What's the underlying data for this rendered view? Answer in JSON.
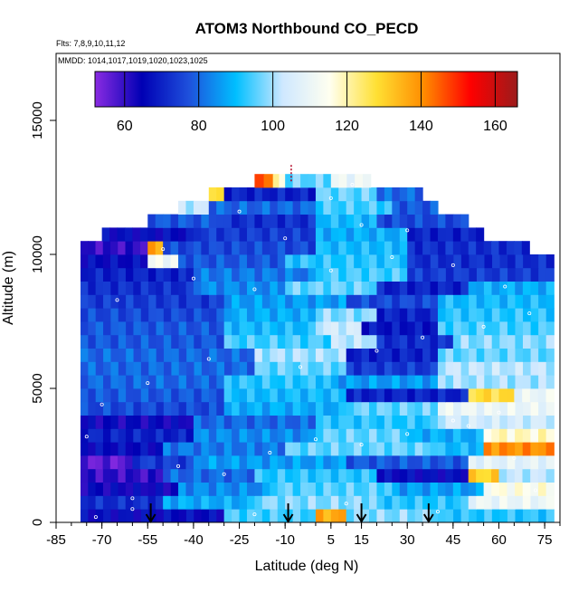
{
  "chart_data": {
    "type": "heatmap",
    "title": "ATOM3 Northbound CO_PECD",
    "subtitle_line1": "Flts: 7,8,9,10,11,12",
    "subtitle_line2": "MMDD: 1014,1017,1019,1020,1023,1025",
    "xlabel": "Latitude (deg N)",
    "ylabel": "Altitude (m)",
    "xlim": [
      -85,
      80
    ],
    "ylim": [
      0,
      17500
    ],
    "x_ticks": [
      -85,
      -70,
      -55,
      -40,
      -25,
      -10,
      5,
      15,
      30,
      45,
      60,
      75
    ],
    "y_ticks": [
      0,
      5000,
      10000,
      15000
    ],
    "colorbar": {
      "range": [
        52,
        166
      ],
      "ticks": [
        60,
        80,
        100,
        120,
        140,
        160
      ],
      "palette": [
        "#8a2be2",
        "#0000b4",
        "#1e50dc",
        "#00bfff",
        "#cfe8ff",
        "#fffff0",
        "#ffe033",
        "#ff8c00",
        "#ff0000",
        "#9b1b1b"
      ]
    },
    "arrows_lat": [
      -54,
      -9,
      15,
      37
    ],
    "tick_mark_top_lat": [
      -8
    ],
    "tick_mark_top_alt": [
      13000
    ],
    "bins": {
      "alt_step": 500,
      "rows": [
        {
          "alt": 0,
          "segments": [
            {
              "lat0": -77,
              "lat1": -30,
              "v": 66
            },
            {
              "lat0": -30,
              "lat1": 0,
              "v": 94
            },
            {
              "lat0": 0,
              "lat1": 10,
              "v": 136
            },
            {
              "lat0": 10,
              "lat1": 40,
              "v": 98
            },
            {
              "lat0": 40,
              "lat1": 78,
              "v": 92
            }
          ]
        },
        {
          "alt": 500,
          "segments": [
            {
              "lat0": -77,
              "lat1": -50,
              "v": 72
            },
            {
              "lat0": -50,
              "lat1": -20,
              "v": 88
            },
            {
              "lat0": -20,
              "lat1": 20,
              "v": 98
            },
            {
              "lat0": 20,
              "lat1": 50,
              "v": 92
            },
            {
              "lat0": 50,
              "lat1": 78,
              "v": 110
            }
          ]
        },
        {
          "alt": 1000,
          "segments": [
            {
              "lat0": -77,
              "lat1": -45,
              "v": 64
            },
            {
              "lat0": -45,
              "lat1": -15,
              "v": 84
            },
            {
              "lat0": -15,
              "lat1": 25,
              "v": 95
            },
            {
              "lat0": 25,
              "lat1": 55,
              "v": 86
            },
            {
              "lat0": 55,
              "lat1": 78,
              "v": 115
            }
          ]
        },
        {
          "alt": 1500,
          "segments": [
            {
              "lat0": -77,
              "lat1": -50,
              "v": 60
            },
            {
              "lat0": -50,
              "lat1": -20,
              "v": 80
            },
            {
              "lat0": -20,
              "lat1": 20,
              "v": 92
            },
            {
              "lat0": 20,
              "lat1": 50,
              "v": 66
            },
            {
              "lat0": 50,
              "lat1": 60,
              "v": 130
            },
            {
              "lat0": 60,
              "lat1": 78,
              "v": 102
            }
          ]
        },
        {
          "alt": 2000,
          "segments": [
            {
              "lat0": -77,
              "lat1": -60,
              "v": 56
            },
            {
              "lat0": -60,
              "lat1": -40,
              "v": 74
            },
            {
              "lat0": -40,
              "lat1": 10,
              "v": 86
            },
            {
              "lat0": 10,
              "lat1": 50,
              "v": 78
            },
            {
              "lat0": 50,
              "lat1": 78,
              "v": 108
            }
          ]
        },
        {
          "alt": 2500,
          "segments": [
            {
              "lat0": -77,
              "lat1": -50,
              "v": 66
            },
            {
              "lat0": -50,
              "lat1": -10,
              "v": 82
            },
            {
              "lat0": -10,
              "lat1": 40,
              "v": 96
            },
            {
              "lat0": 40,
              "lat1": 55,
              "v": 90
            },
            {
              "lat0": 55,
              "lat1": 78,
              "v": 140
            }
          ]
        },
        {
          "alt": 3000,
          "segments": [
            {
              "lat0": -77,
              "lat1": -40,
              "v": 70
            },
            {
              "lat0": -40,
              "lat1": 0,
              "v": 84
            },
            {
              "lat0": 0,
              "lat1": 30,
              "v": 96
            },
            {
              "lat0": 30,
              "lat1": 55,
              "v": 88
            },
            {
              "lat0": 55,
              "lat1": 78,
              "v": 118
            }
          ]
        },
        {
          "alt": 3500,
          "segments": [
            {
              "lat0": -77,
              "lat1": -40,
              "v": 64
            },
            {
              "lat0": -40,
              "lat1": 0,
              "v": 80
            },
            {
              "lat0": 0,
              "lat1": 40,
              "v": 92
            },
            {
              "lat0": 40,
              "lat1": 78,
              "v": 104
            }
          ]
        },
        {
          "alt": 4000,
          "segments": [
            {
              "lat0": -77,
              "lat1": -30,
              "v": 76
            },
            {
              "lat0": -30,
              "lat1": 10,
              "v": 88
            },
            {
              "lat0": 10,
              "lat1": 40,
              "v": 96
            },
            {
              "lat0": 40,
              "lat1": 78,
              "v": 110
            }
          ]
        },
        {
          "alt": 4500,
          "segments": [
            {
              "lat0": -77,
              "lat1": -30,
              "v": 78
            },
            {
              "lat0": -30,
              "lat1": 10,
              "v": 90
            },
            {
              "lat0": 10,
              "lat1": 50,
              "v": 70
            },
            {
              "lat0": 50,
              "lat1": 65,
              "v": 128
            },
            {
              "lat0": 65,
              "lat1": 78,
              "v": 110
            }
          ]
        },
        {
          "alt": 5000,
          "segments": [
            {
              "lat0": -77,
              "lat1": -30,
              "v": 80
            },
            {
              "lat0": -30,
              "lat1": 5,
              "v": 92
            },
            {
              "lat0": 5,
              "lat1": 40,
              "v": 86
            },
            {
              "lat0": 40,
              "lat1": 78,
              "v": 100
            }
          ]
        },
        {
          "alt": 5500,
          "segments": [
            {
              "lat0": -77,
              "lat1": -20,
              "v": 80
            },
            {
              "lat0": -20,
              "lat1": 10,
              "v": 96
            },
            {
              "lat0": 10,
              "lat1": 40,
              "v": 74
            },
            {
              "lat0": 40,
              "lat1": 78,
              "v": 102
            }
          ]
        },
        {
          "alt": 6000,
          "segments": [
            {
              "lat0": -77,
              "lat1": -20,
              "v": 80
            },
            {
              "lat0": -20,
              "lat1": 10,
              "v": 100
            },
            {
              "lat0": 10,
              "lat1": 40,
              "v": 70
            },
            {
              "lat0": 40,
              "lat1": 78,
              "v": 96
            }
          ]
        },
        {
          "alt": 6500,
          "segments": [
            {
              "lat0": -77,
              "lat1": -30,
              "v": 78
            },
            {
              "lat0": -30,
              "lat1": 5,
              "v": 94
            },
            {
              "lat0": 5,
              "lat1": 20,
              "v": 102
            },
            {
              "lat0": 20,
              "lat1": 45,
              "v": 72
            },
            {
              "lat0": 45,
              "lat1": 78,
              "v": 98
            }
          ]
        },
        {
          "alt": 7000,
          "segments": [
            {
              "lat0": -77,
              "lat1": -30,
              "v": 78
            },
            {
              "lat0": -30,
              "lat1": 0,
              "v": 90
            },
            {
              "lat0": 0,
              "lat1": 15,
              "v": 104
            },
            {
              "lat0": 15,
              "lat1": 40,
              "v": 68
            },
            {
              "lat0": 40,
              "lat1": 78,
              "v": 94
            }
          ]
        },
        {
          "alt": 7500,
          "segments": [
            {
              "lat0": -77,
              "lat1": -30,
              "v": 76
            },
            {
              "lat0": -30,
              "lat1": 0,
              "v": 88
            },
            {
              "lat0": 0,
              "lat1": 20,
              "v": 98
            },
            {
              "lat0": 20,
              "lat1": 40,
              "v": 70
            },
            {
              "lat0": 40,
              "lat1": 78,
              "v": 92
            }
          ]
        },
        {
          "alt": 8000,
          "segments": [
            {
              "lat0": -77,
              "lat1": -30,
              "v": 74
            },
            {
              "lat0": -30,
              "lat1": 10,
              "v": 86
            },
            {
              "lat0": 10,
              "lat1": 40,
              "v": 76
            },
            {
              "lat0": 40,
              "lat1": 78,
              "v": 90
            }
          ]
        },
        {
          "alt": 8500,
          "segments": [
            {
              "lat0": -77,
              "lat1": -40,
              "v": 72
            },
            {
              "lat0": -40,
              "lat1": -10,
              "v": 84
            },
            {
              "lat0": -10,
              "lat1": 20,
              "v": 96
            },
            {
              "lat0": 20,
              "lat1": 50,
              "v": 70
            },
            {
              "lat0": 50,
              "lat1": 78,
              "v": 88
            }
          ]
        },
        {
          "alt": 9000,
          "segments": [
            {
              "lat0": -77,
              "lat1": -40,
              "v": 70
            },
            {
              "lat0": -40,
              "lat1": 0,
              "v": 82
            },
            {
              "lat0": 0,
              "lat1": 30,
              "v": 94
            },
            {
              "lat0": 30,
              "lat1": 78,
              "v": 74
            }
          ]
        },
        {
          "alt": 9500,
          "segments": [
            {
              "lat0": -77,
              "lat1": -55,
              "v": 66
            },
            {
              "lat0": -55,
              "lat1": -45,
              "v": 112
            },
            {
              "lat0": -45,
              "lat1": -10,
              "v": 78
            },
            {
              "lat0": -10,
              "lat1": 30,
              "v": 92
            },
            {
              "lat0": 30,
              "lat1": 78,
              "v": 72
            }
          ]
        },
        {
          "alt": 10000,
          "segments": [
            {
              "lat0": -77,
              "lat1": -55,
              "v": 60
            },
            {
              "lat0": -55,
              "lat1": -50,
              "v": 136
            },
            {
              "lat0": -50,
              "lat1": 0,
              "v": 76
            },
            {
              "lat0": 0,
              "lat1": 30,
              "v": 90
            },
            {
              "lat0": 30,
              "lat1": 70,
              "v": 72
            }
          ]
        },
        {
          "alt": 10500,
          "segments": [
            {
              "lat0": -70,
              "lat1": -40,
              "v": 66
            },
            {
              "lat0": -40,
              "lat1": 0,
              "v": 74
            },
            {
              "lat0": 0,
              "lat1": 30,
              "v": 88
            },
            {
              "lat0": 30,
              "lat1": 55,
              "v": 70
            }
          ]
        },
        {
          "alt": 11000,
          "segments": [
            {
              "lat0": -55,
              "lat1": -30,
              "v": 78
            },
            {
              "lat0": -30,
              "lat1": 0,
              "v": 72
            },
            {
              "lat0": 0,
              "lat1": 20,
              "v": 90
            },
            {
              "lat0": 20,
              "lat1": 50,
              "v": 76
            }
          ]
        },
        {
          "alt": 11500,
          "segments": [
            {
              "lat0": -45,
              "lat1": -35,
              "v": 102
            },
            {
              "lat0": -35,
              "lat1": 0,
              "v": 80
            },
            {
              "lat0": 0,
              "lat1": 25,
              "v": 94
            },
            {
              "lat0": 25,
              "lat1": 40,
              "v": 78
            }
          ]
        },
        {
          "alt": 12000,
          "segments": [
            {
              "lat0": -35,
              "lat1": -30,
              "v": 126
            },
            {
              "lat0": -30,
              "lat1": 0,
              "v": 70
            },
            {
              "lat0": 0,
              "lat1": 20,
              "v": 96
            },
            {
              "lat0": 20,
              "lat1": 35,
              "v": 80
            }
          ]
        },
        {
          "alt": 12500,
          "segments": [
            {
              "lat0": -20,
              "lat1": -14,
              "v": 146
            },
            {
              "lat0": -14,
              "lat1": -10,
              "v": 118
            },
            {
              "lat0": -10,
              "lat1": 5,
              "v": 96
            },
            {
              "lat0": 5,
              "lat1": 18,
              "v": 110
            }
          ]
        }
      ]
    },
    "sample_points": [
      [
        -72,
        200
      ],
      [
        -60,
        900
      ],
      [
        -45,
        2100
      ],
      [
        -30,
        1800
      ],
      [
        -15,
        2600
      ],
      [
        0,
        3100
      ],
      [
        15,
        2900
      ],
      [
        30,
        3300
      ],
      [
        45,
        3800
      ],
      [
        60,
        4100
      ],
      [
        -70,
        4400
      ],
      [
        -55,
        5200
      ],
      [
        -35,
        6100
      ],
      [
        -5,
        5800
      ],
      [
        20,
        6400
      ],
      [
        35,
        6900
      ],
      [
        55,
        7300
      ],
      [
        70,
        7800
      ],
      [
        -65,
        8300
      ],
      [
        -40,
        9100
      ],
      [
        -20,
        8700
      ],
      [
        5,
        9400
      ],
      [
        25,
        9900
      ],
      [
        45,
        9600
      ],
      [
        62,
        8800
      ],
      [
        -50,
        10200
      ],
      [
        -10,
        10600
      ],
      [
        15,
        11100
      ],
      [
        30,
        10900
      ],
      [
        -25,
        11600
      ],
      [
        5,
        12100
      ],
      [
        12,
        12600
      ],
      [
        -60,
        500
      ],
      [
        -20,
        300
      ],
      [
        10,
        700
      ],
      [
        40,
        400
      ],
      [
        72,
        1200
      ],
      [
        65,
        2400
      ],
      [
        50,
        3600
      ],
      [
        -75,
        3200
      ]
    ]
  }
}
